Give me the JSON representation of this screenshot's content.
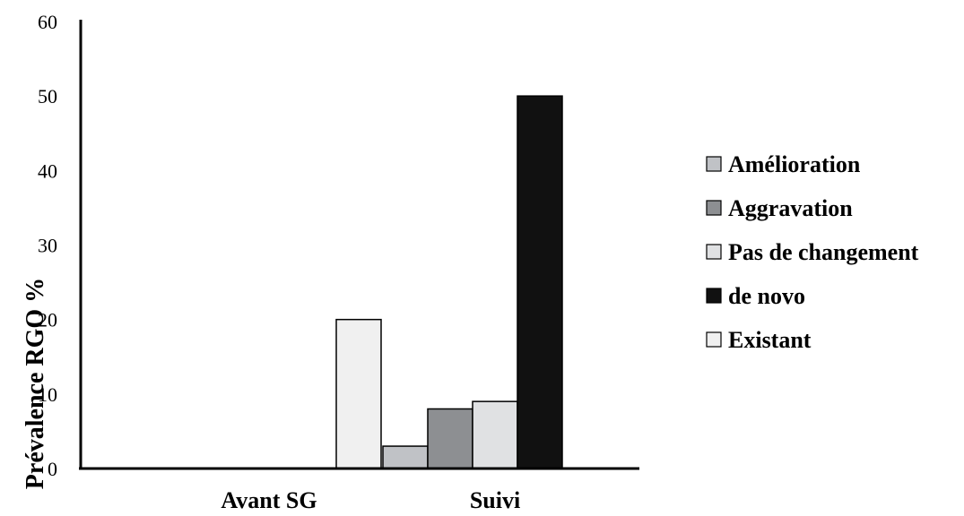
{
  "chart_data": {
    "type": "bar",
    "title": "",
    "xlabel": "",
    "ylabel": "Prévalence RGO %",
    "ylim": [
      0,
      60
    ],
    "yticks": [
      "0",
      "10",
      "20",
      "30",
      "40",
      "50",
      "60"
    ],
    "categories": [
      "Avant SG",
      "Suivi"
    ],
    "series": [
      {
        "name": "Amélioration",
        "color": "#c0c2c6",
        "values": [
          0,
          3
        ]
      },
      {
        "name": "Aggravation",
        "color": "#8d8f92",
        "values": [
          0,
          8
        ]
      },
      {
        "name": "Pas de changement",
        "color": "#e0e1e3",
        "values": [
          0,
          9
        ]
      },
      {
        "name": "de novo",
        "color": "#111111",
        "values": [
          0,
          50
        ]
      },
      {
        "name": "Existant",
        "color": "#f0f0f0",
        "values": [
          20,
          0
        ]
      }
    ],
    "legend": {
      "position": "right"
    },
    "grid": false
  }
}
